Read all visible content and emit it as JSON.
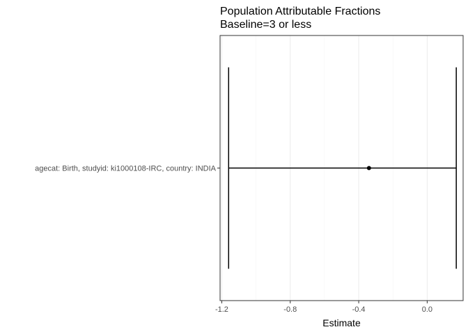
{
  "chart_data": {
    "type": "errorbar",
    "title": "Population Attributable Fractions",
    "subtitle": "Baseline=3 or less",
    "xlabel": "Estimate",
    "ylabel": "",
    "xlim": [
      -1.21,
      0.21
    ],
    "x_ticks": [
      -1.2,
      -0.8,
      -0.4,
      0.0
    ],
    "x_tick_labels": [
      "-1.2",
      "-0.8",
      "-0.4",
      "0.0"
    ],
    "categories": [
      "agecat: Birth, studyid: ki1000108-IRC, country: INDIA"
    ],
    "points": [
      {
        "category": "agecat: Birth, studyid: ki1000108-IRC, country: INDIA",
        "estimate": -0.34,
        "lower": -1.16,
        "upper": 0.17
      }
    ],
    "grid": true,
    "theme": "bw"
  }
}
